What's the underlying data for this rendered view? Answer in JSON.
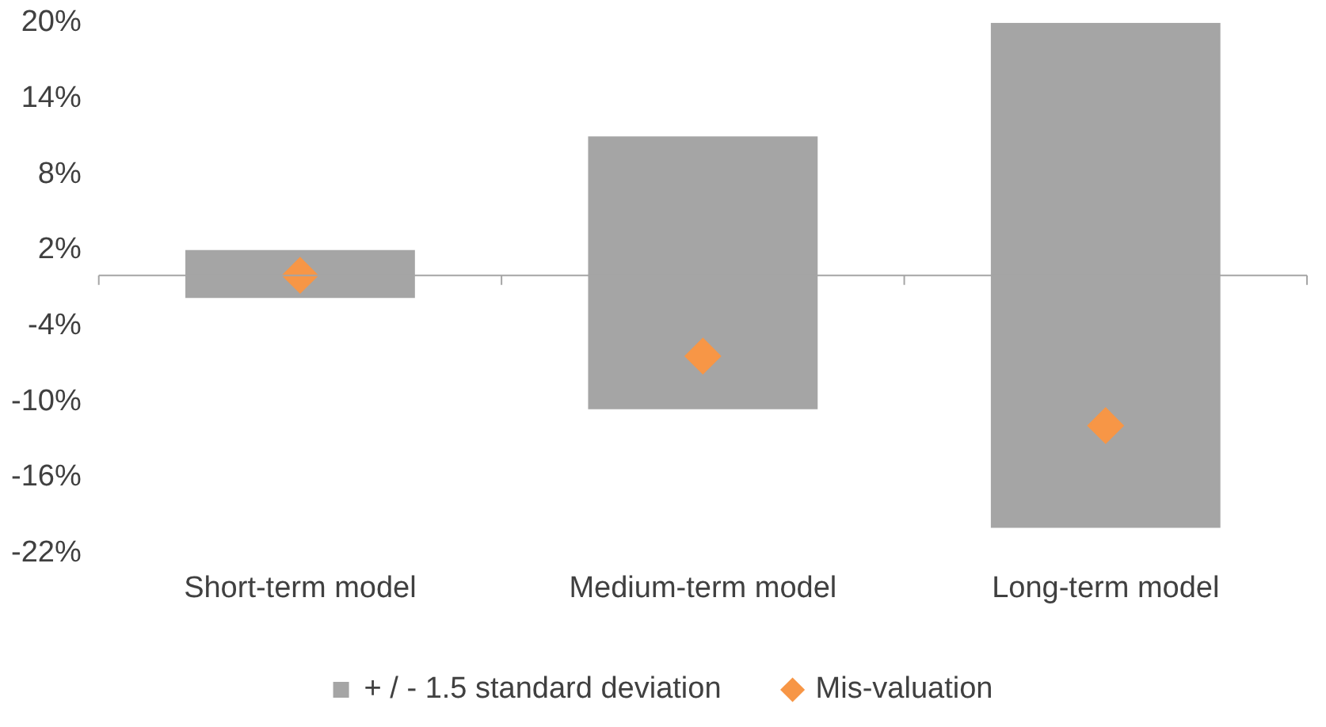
{
  "chart_data": {
    "type": "bar",
    "categories": [
      "Short-term model",
      "Medium-term model",
      "Long-term model"
    ],
    "series": [
      {
        "name": "+ / - 1.5 standard deviation",
        "color": "#a5a5a5",
        "base": [
          -1.8,
          -10.6,
          -20
        ],
        "values": [
          3.8,
          21.6,
          40
        ]
      },
      {
        "name": "Mis-valuation",
        "type": "scatter",
        "color": "#f79646",
        "x": [
          "Short-term model",
          "Medium-term model",
          "Long-term model"
        ],
        "values": [
          0,
          -6.4,
          -11.9
        ]
      }
    ],
    "ylim": [
      -22,
      20
    ],
    "yticks": [
      {
        "value": -22,
        "label": "-22%"
      },
      {
        "value": -16,
        "label": "-16%"
      },
      {
        "value": -10,
        "label": "-10%"
      },
      {
        "value": -4,
        "label": "-4%"
      },
      {
        "value": 2,
        "label": "2%"
      },
      {
        "value": 8,
        "label": "8%"
      },
      {
        "value": 14,
        "label": "14%"
      },
      {
        "value": 20,
        "label": "20%"
      }
    ],
    "grid": false,
    "legend": "bottom",
    "marker": "diamond"
  }
}
